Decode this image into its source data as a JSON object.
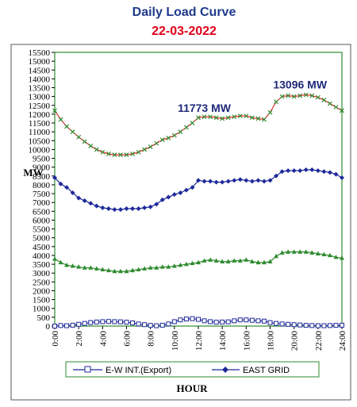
{
  "chart_data": {
    "type": "line",
    "title": "Daily Load Curve",
    "subtitle": "22-03-2022",
    "title_color": "#1f3a8a",
    "subtitle_color": "#e0001b",
    "xlabel": "HOUR",
    "ylabel": "MW",
    "ylim": [
      0,
      15500
    ],
    "y_ticks": [
      0,
      500,
      1000,
      1500,
      2000,
      2500,
      3000,
      3500,
      4000,
      4500,
      5000,
      5500,
      6000,
      6500,
      7000,
      7500,
      8000,
      8500,
      9000,
      9500,
      10000,
      10500,
      11000,
      11500,
      12000,
      12500,
      13000,
      13500,
      14000,
      14500,
      15000,
      15500
    ],
    "x_tick_labels": [
      "0:00",
      "2:00",
      "4:00",
      "6:00",
      "8:00",
      "10:00",
      "12:00",
      "14:00",
      "16:00",
      "18:00",
      "20:00",
      "22:00",
      "24:00"
    ],
    "x_range": [
      0,
      24
    ],
    "grid": false,
    "frame_color": "#2e8b2e",
    "legend_placement": "bottom",
    "annotations": [
      {
        "text": "11773 MW",
        "x": 12.5,
        "y": 11773
      },
      {
        "text": "13096 MW",
        "x": 20.5,
        "y": 13096
      }
    ],
    "x": [
      0,
      0.5,
      1,
      1.5,
      2,
      2.5,
      3,
      3.5,
      4,
      4.5,
      5,
      5.5,
      6,
      6.5,
      7,
      7.5,
      8,
      8.5,
      9,
      9.5,
      10,
      10.5,
      11,
      11.5,
      12,
      12.5,
      13,
      13.5,
      14,
      14.5,
      15,
      15.5,
      16,
      16.5,
      17,
      17.5,
      18,
      18.5,
      19,
      19.5,
      20,
      20.5,
      21,
      21.5,
      22,
      22.5,
      23,
      23.5,
      24
    ],
    "series": [
      {
        "values": [
          12200,
          11700,
          11300,
          11000,
          10700,
          10450,
          10200,
          10000,
          9850,
          9750,
          9700,
          9700,
          9700,
          9750,
          9850,
          10000,
          10150,
          10350,
          10550,
          10650,
          10800,
          11000,
          11250,
          11500,
          11800,
          11850,
          11850,
          11800,
          11750,
          11800,
          11850,
          11900,
          11900,
          11800,
          11750,
          11700,
          12100,
          12700,
          13000,
          13050,
          13000,
          13050,
          13096,
          13050,
          12950,
          12800,
          12600,
          12400,
          12200
        ],
        "color": "#e03030",
        "marker_color": "#2e8b2e",
        "marker": "x"
      },
      {
        "name": "EAST GRID",
        "values": [
          8400,
          8050,
          7850,
          7550,
          7250,
          7100,
          6950,
          6800,
          6700,
          6650,
          6600,
          6600,
          6650,
          6650,
          6650,
          6700,
          6750,
          6900,
          7150,
          7300,
          7450,
          7550,
          7700,
          7850,
          8250,
          8200,
          8200,
          8150,
          8150,
          8200,
          8250,
          8300,
          8250,
          8200,
          8250,
          8200,
          8250,
          8500,
          8750,
          8800,
          8800,
          8800,
          8850,
          8850,
          8800,
          8750,
          8700,
          8600,
          8400
        ],
        "color": "#1f2a9a",
        "marker": "diamond"
      },
      {
        "values": [
          3800,
          3600,
          3450,
          3400,
          3350,
          3300,
          3300,
          3250,
          3200,
          3150,
          3100,
          3100,
          3100,
          3150,
          3200,
          3250,
          3300,
          3300,
          3350,
          3350,
          3400,
          3450,
          3500,
          3550,
          3600,
          3700,
          3750,
          3700,
          3650,
          3650,
          3700,
          3700,
          3750,
          3650,
          3600,
          3600,
          3650,
          3950,
          4150,
          4200,
          4200,
          4200,
          4200,
          4150,
          4100,
          4050,
          4000,
          3900,
          3850
        ],
        "color": "#2e8b2e",
        "marker": "triangle"
      },
      {
        "name": "E-W INT.(Export)",
        "values": [
          0,
          30,
          20,
          50,
          100,
          150,
          200,
          230,
          250,
          260,
          250,
          240,
          220,
          180,
          120,
          80,
          40,
          20,
          50,
          120,
          250,
          350,
          400,
          420,
          380,
          300,
          250,
          220,
          230,
          240,
          300,
          350,
          350,
          330,
          300,
          280,
          200,
          150,
          120,
          100,
          80,
          60,
          40,
          30,
          20,
          20,
          30,
          40,
          50
        ],
        "color": "#1f2a9a",
        "marker": "square"
      }
    ]
  }
}
